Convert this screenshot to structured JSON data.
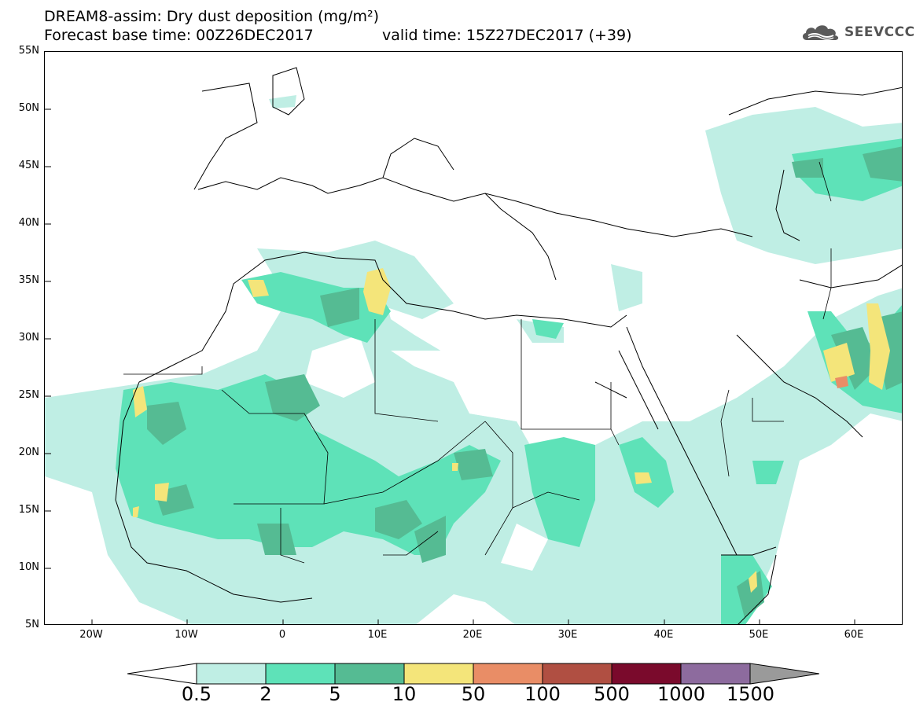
{
  "header": {
    "title_line1": "DREAM8-assim: Dry dust deposition (mg/m²)",
    "title_line2": "Forecast base time: 00Z26DEC2017",
    "valid_time": "valid time: 15Z27DEC2017 (+39)"
  },
  "logo": {
    "text": "SEEVCCC",
    "icon": "cloud-icon"
  },
  "map": {
    "lat_labels": [
      "55N",
      "50N",
      "45N",
      "40N",
      "35N",
      "30N",
      "25N",
      "20N",
      "15N",
      "10N",
      "5N"
    ],
    "lon_labels": [
      "20W",
      "10W",
      "0",
      "10E",
      "20E",
      "30E",
      "40E",
      "50E",
      "60E"
    ]
  },
  "legend": {
    "labels": [
      "0.5",
      "2",
      "5",
      "10",
      "50",
      "100",
      "500",
      "1000",
      "1500"
    ],
    "colors": [
      "#bfeee4",
      "#5ee2b8",
      "#55bb93",
      "#f4e57a",
      "#e98d66",
      "#b04f42",
      "#7a0a2c",
      "#8d6b9e",
      "#9a9a9a"
    ]
  }
}
